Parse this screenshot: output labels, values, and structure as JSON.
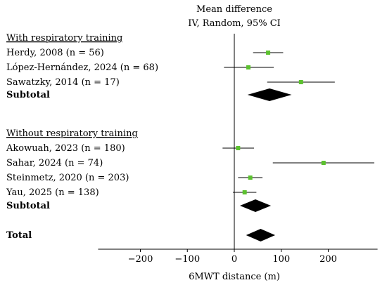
{
  "chart_data": {
    "type": "forest",
    "header": {
      "line1": "Mean difference",
      "line2": "IV, Random, 95% CI"
    },
    "xlabel": "6MWT distance (m)",
    "xlim": [
      -290,
      305
    ],
    "xticks": [
      {
        "value": -200,
        "label": "−200"
      },
      {
        "value": -100,
        "label": "−100"
      },
      {
        "value": 0,
        "label": "0"
      },
      {
        "value": 100,
        "label": "100"
      },
      {
        "value": 200,
        "label": "200"
      }
    ],
    "marker_color": "#5cc12f",
    "diamond_color": "#000000",
    "groups": [
      {
        "label": "With respiratory training",
        "studies": [
          {
            "label": "Herdy, 2008 (n = 56)",
            "estimate": 72,
            "lower": 40,
            "upper": 104
          },
          {
            "label": "López-Hernández, 2024 (n = 68)",
            "estimate": 30,
            "lower": -22,
            "upper": 84
          },
          {
            "label": "Sawatzky, 2014 (n = 17)",
            "estimate": 142,
            "lower": 70,
            "upper": 214
          }
        ],
        "subtotal": {
          "label": "Subtotal",
          "estimate": 75,
          "lower": 28,
          "upper": 122
        }
      },
      {
        "label": "Without respiratory training",
        "studies": [
          {
            "label": "Akowuah, 2023 (n = 180)",
            "estimate": 8,
            "lower": -25,
            "upper": 42
          },
          {
            "label": "Sahar, 2024 (n = 74)",
            "estimate": 190,
            "lower": 82,
            "upper": 298
          },
          {
            "label": "Steinmetz, 2020 (n = 203)",
            "estimate": 34,
            "lower": 8,
            "upper": 60
          },
          {
            "label": "Yau, 2025 (n = 138)",
            "estimate": 22,
            "lower": -3,
            "upper": 47
          }
        ],
        "subtotal": {
          "label": "Subtotal",
          "estimate": 45,
          "lower": 12,
          "upper": 78
        }
      }
    ],
    "total": {
      "label": "Total",
      "estimate": 56,
      "lower": 25,
      "upper": 87
    }
  }
}
